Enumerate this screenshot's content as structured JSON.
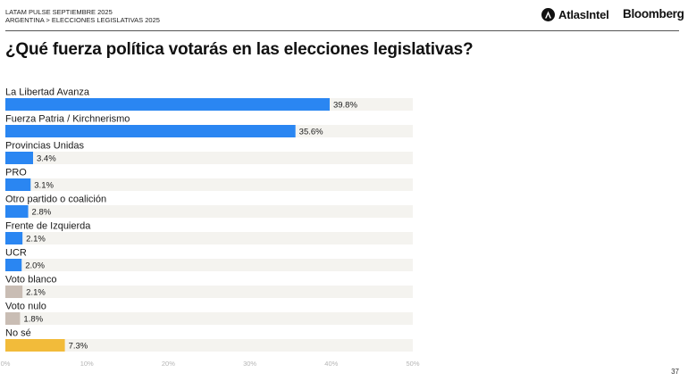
{
  "header": {
    "line1": "LATAM PULSE SEPTIEMBRE 2025",
    "line2": "ARGENTINA > ELECCIONES LEGISLATIVAS 2025"
  },
  "brands": {
    "atlas": "AtlasIntel",
    "bloomberg": "Bloomberg"
  },
  "title": "¿Qué fuerza política votarás en las elecciones legislativas?",
  "page_number": "37",
  "colors": {
    "party": "#2a86f2",
    "blank_null": "#c9bdb4",
    "unsure": "#f2bb3a",
    "track": "#f4f3ef",
    "axis_text": "#b5b5b5"
  },
  "chart_data": {
    "type": "bar",
    "orientation": "horizontal",
    "title": "¿Qué fuerza política votarás en las elecciones legislativas?",
    "categories": [
      "La Libertad Avanza",
      "Fuerza Patria / Kirchnerismo",
      "Provincias Unidas",
      "PRO",
      "Otro partido o coalición",
      "Frente de Izquierda",
      "UCR",
      "Voto blanco",
      "Voto nulo",
      "No sé"
    ],
    "values": [
      39.8,
      35.6,
      3.4,
      3.1,
      2.8,
      2.1,
      2.0,
      2.1,
      1.8,
      7.3
    ],
    "data_labels": [
      "39.8%",
      "35.6%",
      "3.4%",
      "3.1%",
      "2.8%",
      "2.1%",
      "2.0%",
      "2.1%",
      "1.8%",
      "7.3%"
    ],
    "bar_colors": [
      "#2a86f2",
      "#2a86f2",
      "#2a86f2",
      "#2a86f2",
      "#2a86f2",
      "#2a86f2",
      "#2a86f2",
      "#c9bdb4",
      "#c9bdb4",
      "#f2bb3a"
    ],
    "xlim": [
      0,
      50
    ],
    "x_ticks": [
      "0%",
      "10%",
      "20%",
      "30%",
      "40%",
      "50%"
    ],
    "xlabel": "",
    "ylabel": "",
    "grid": false,
    "legend": "none"
  }
}
